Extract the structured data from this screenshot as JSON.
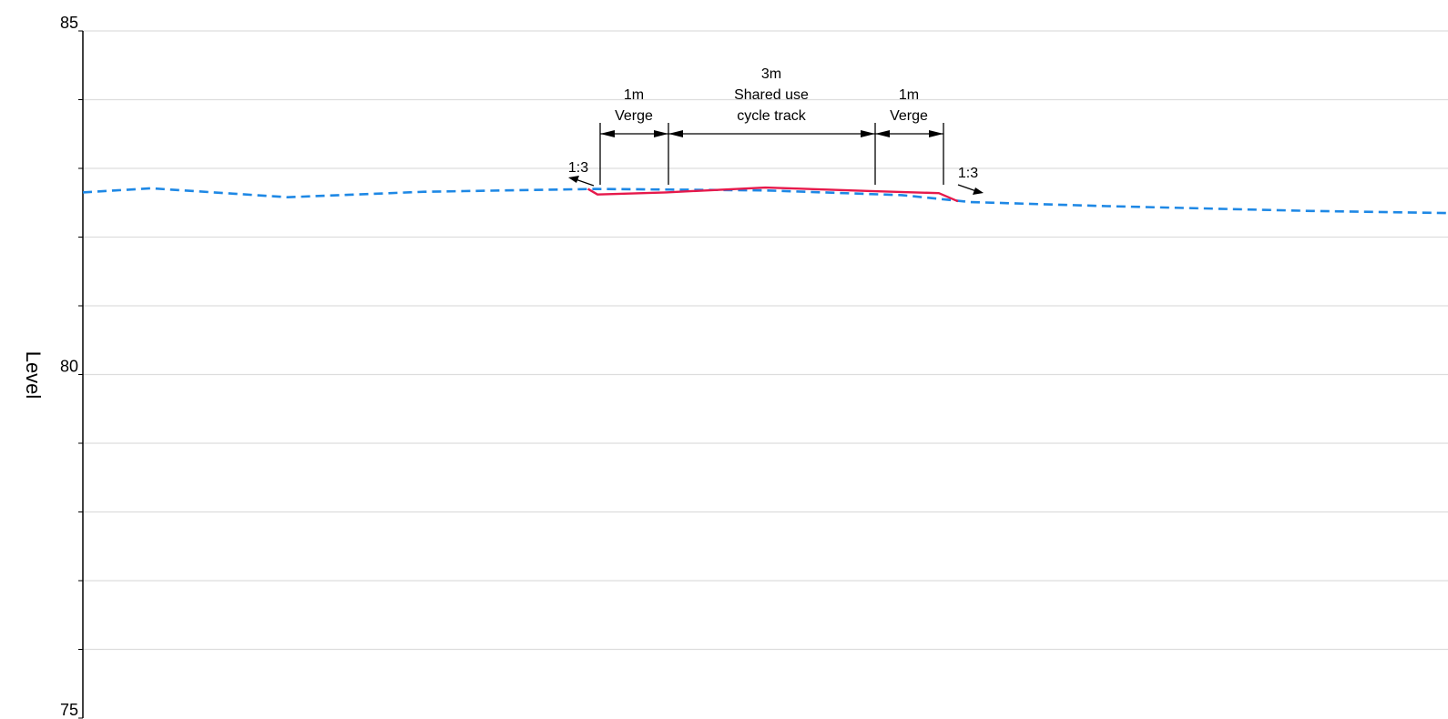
{
  "y_axis": {
    "label": "Level",
    "tick_labels": [
      "85",
      "80",
      "75"
    ],
    "range": [
      75,
      85
    ]
  },
  "dimensions": [
    {
      "width": "1m",
      "name": "Verge"
    },
    {
      "width": "3m",
      "name_line1": "Shared use",
      "name_line2": "cycle track"
    },
    {
      "width": "1m",
      "name": "Verge"
    }
  ],
  "slopes": {
    "left": "1:3",
    "right": "1:3"
  },
  "colors": {
    "existing_ground": "#1e88e5",
    "proposed": "#e6194b",
    "grid": "#dddddd"
  },
  "chart_data": {
    "type": "line",
    "y_axis_label": "Level",
    "ylim": [
      75,
      85
    ],
    "grid": true,
    "series": [
      {
        "style": "dashed",
        "color": "#1e88e5",
        "x": [
          0,
          5,
          15,
          25,
          37.5,
          50,
          60,
          65,
          75,
          90,
          100
        ],
        "y": [
          82.65,
          82.71,
          82.58,
          82.66,
          82.7,
          82.68,
          82.61,
          82.51,
          82.45,
          82.38,
          82.35
        ]
      },
      {
        "style": "solid",
        "color": "#e6194b",
        "x": [
          37,
          37.7,
          42.7,
          50,
          57.7,
          62.7,
          64.1
        ],
        "y": [
          82.7,
          82.62,
          82.65,
          82.72,
          82.67,
          82.64,
          82.52
        ]
      }
    ]
  }
}
